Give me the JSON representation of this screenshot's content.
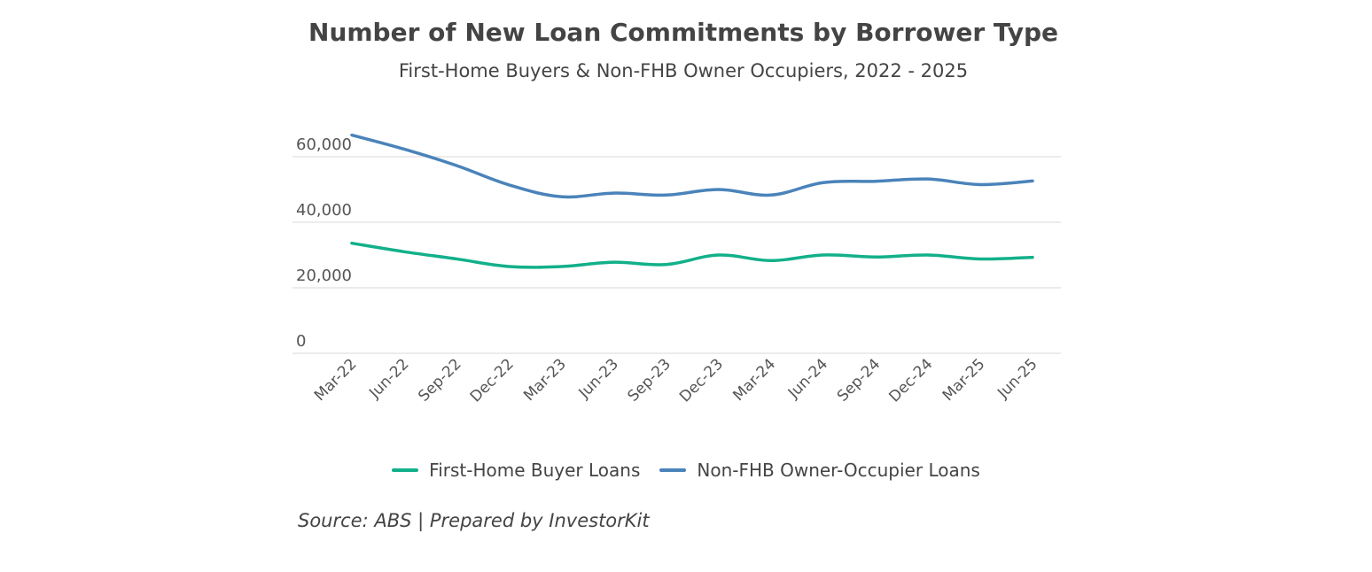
{
  "chart_data": {
    "type": "line",
    "title": "Number of New Loan Commitments by Borrower Type",
    "subtitle": "First-Home Buyers & Non-FHB Owner Occupiers, 2022 - 2025",
    "categories": [
      "Mar-22",
      "Jun-22",
      "Sep-22",
      "Dec-22",
      "Mar-23",
      "Jun-23",
      "Sep-23",
      "Dec-23",
      "Mar-24",
      "Jun-24",
      "Sep-24",
      "Dec-24",
      "Mar-25",
      "Jun-25"
    ],
    "series": [
      {
        "name": "First-Home Buyer Loans",
        "color": "#12b08a",
        "values": [
          33600,
          31000,
          28800,
          26500,
          26500,
          27800,
          27100,
          30000,
          28300,
          30000,
          29400,
          30000,
          28800,
          29300
        ]
      },
      {
        "name": "Non-FHB Owner-Occupier Loans",
        "color": "#4a83ba",
        "values": [
          66600,
          62300,
          57300,
          51400,
          47800,
          48900,
          48300,
          50000,
          48300,
          52100,
          52500,
          53200,
          51500,
          52600
        ]
      }
    ],
    "yticks": [
      0,
      20000,
      40000,
      60000
    ],
    "ytick_labels": [
      "0",
      "20,000",
      "40,000",
      "60,000"
    ],
    "ylim": [
      0,
      70000
    ],
    "grid": true,
    "legend_position": "bottom",
    "xlabel": "",
    "ylabel": "",
    "source": "Source: ABS | Prepared by InvestorKit"
  }
}
